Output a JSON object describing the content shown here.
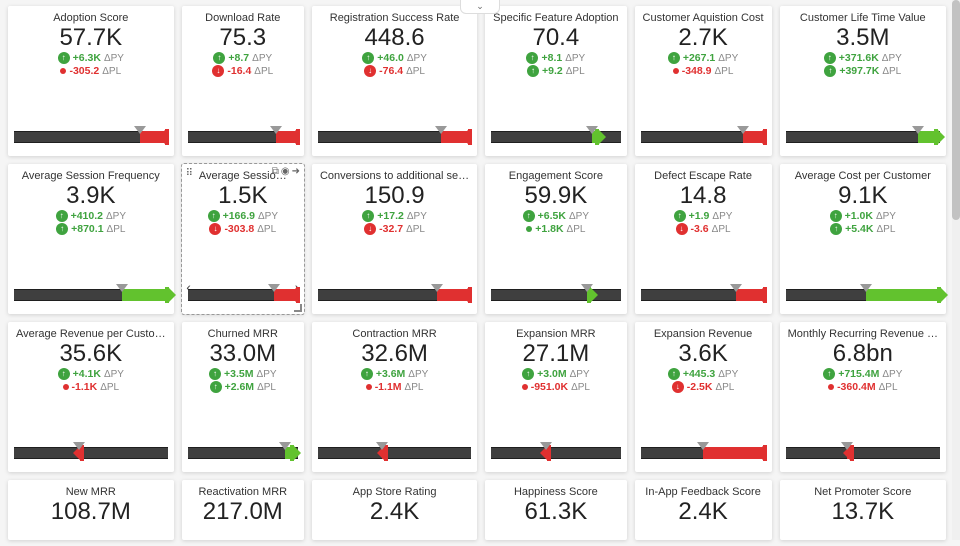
{
  "colors": {
    "green": "#3fa33f",
    "red": "#e03030",
    "bar_green": "#62c22e",
    "bar_red": "#e03030",
    "track": "#3f3f3f",
    "card_bg": "#ffffff",
    "page_bg": "#f5f5f5"
  },
  "cards": [
    {
      "title": "Adoption Score",
      "value": "57.7K",
      "dpy": {
        "kind": "arrow",
        "dir": "up",
        "color": "green",
        "text": "+6.3K"
      },
      "dpl": {
        "kind": "dot",
        "color": "red",
        "text": "-305.2",
        "text_color": "red"
      },
      "bullet": {
        "marker_pct": 82,
        "fill_from": 82,
        "fill_to": 100,
        "fill_color": "red",
        "cap": "red-left"
      }
    },
    {
      "title": "Download Rate",
      "value": "75.3",
      "dpy": {
        "kind": "arrow",
        "dir": "up",
        "color": "green",
        "text": "+8.7"
      },
      "dpl": {
        "kind": "arrow",
        "dir": "down",
        "color": "red",
        "text": "-16.4",
        "text_color": "red"
      },
      "bullet": {
        "marker_pct": 80,
        "fill_from": 80,
        "fill_to": 100,
        "fill_color": "red",
        "cap": "red-left"
      }
    },
    {
      "title": "Registration Success Rate",
      "value": "448.6",
      "dpy": {
        "kind": "arrow",
        "dir": "up",
        "color": "green",
        "text": "+46.0"
      },
      "dpl": {
        "kind": "arrow",
        "dir": "down",
        "color": "red",
        "text": "-76.4",
        "text_color": "red"
      },
      "bullet": {
        "marker_pct": 80,
        "fill_from": 80,
        "fill_to": 100,
        "fill_color": "red",
        "cap": "red-left"
      }
    },
    {
      "title": "Specific Feature Adoption",
      "value": "70.4",
      "dpy": {
        "kind": "arrow",
        "dir": "up",
        "color": "green",
        "text": "+8.1"
      },
      "dpl": {
        "kind": "arrow",
        "dir": "up",
        "color": "green",
        "text": "+9.2"
      },
      "bullet": {
        "marker_pct": 78,
        "fill_from": 78,
        "fill_to": 82,
        "fill_color": "green",
        "cap": "green-right"
      }
    },
    {
      "title": "Customer Aquistion Cost",
      "value": "2.7K",
      "dpy": {
        "kind": "arrow",
        "dir": "up",
        "color": "green",
        "text": "+267.1"
      },
      "dpl": {
        "kind": "dot",
        "color": "red",
        "text": "-348.9",
        "text_color": "red"
      },
      "bullet": {
        "marker_pct": 82,
        "fill_from": 82,
        "fill_to": 100,
        "fill_color": "red",
        "cap": "red-left"
      }
    },
    {
      "title": "Customer Life Time Value",
      "value": "3.5M",
      "dpy": {
        "kind": "arrow",
        "dir": "up",
        "color": "green",
        "text": "+371.6K"
      },
      "dpl": {
        "kind": "arrow",
        "dir": "up",
        "color": "green",
        "text": "+397.7K"
      },
      "bullet": {
        "marker_pct": 86,
        "fill_from": 86,
        "fill_to": 98,
        "fill_color": "green",
        "cap": "green-right"
      }
    },
    {
      "title": "Average Session Frequency",
      "value": "3.9K",
      "dpy": {
        "kind": "arrow",
        "dir": "up",
        "color": "green",
        "text": "+410.2"
      },
      "dpl": {
        "kind": "arrow",
        "dir": "up",
        "color": "green",
        "text": "+870.1"
      },
      "bullet": {
        "marker_pct": 70,
        "fill_from": 70,
        "fill_to": 100,
        "fill_color": "green",
        "cap": "green-right"
      }
    },
    {
      "title": "Average Sessio…",
      "value": "1.5K",
      "focused": true,
      "dpy": {
        "kind": "arrow",
        "dir": "up",
        "color": "green",
        "text": "+166.9"
      },
      "dpl": {
        "kind": "arrow",
        "dir": "down",
        "color": "red",
        "text": "-303.8",
        "text_color": "red"
      },
      "bullet": {
        "marker_pct": 78,
        "fill_from": 78,
        "fill_to": 100,
        "fill_color": "red",
        "cap": "red-left"
      }
    },
    {
      "title": "Conversions to additional se…",
      "value": "150.9",
      "dpy": {
        "kind": "arrow",
        "dir": "up",
        "color": "green",
        "text": "+17.2"
      },
      "dpl": {
        "kind": "arrow",
        "dir": "down",
        "color": "red",
        "text": "-32.7",
        "text_color": "red"
      },
      "bullet": {
        "marker_pct": 78,
        "fill_from": 78,
        "fill_to": 100,
        "fill_color": "red",
        "cap": "red-left"
      }
    },
    {
      "title": "Engagement Score",
      "value": "59.9K",
      "dpy": {
        "kind": "arrow",
        "dir": "up",
        "color": "green",
        "text": "+6.5K"
      },
      "dpl": {
        "kind": "dot",
        "color": "green",
        "text": "+1.8K",
        "text_color": "green"
      },
      "bullet": {
        "marker_pct": 74,
        "fill_from": 74,
        "fill_to": 76,
        "fill_color": "green",
        "cap": "green-right"
      }
    },
    {
      "title": "Defect Escape Rate",
      "value": "14.8",
      "dpy": {
        "kind": "arrow",
        "dir": "up",
        "color": "green",
        "text": "+1.9"
      },
      "dpl": {
        "kind": "arrow",
        "dir": "down",
        "color": "red",
        "text": "-3.6",
        "text_color": "red"
      },
      "bullet": {
        "marker_pct": 76,
        "fill_from": 76,
        "fill_to": 100,
        "fill_color": "red",
        "cap": "red-left"
      }
    },
    {
      "title": "Average Cost per Customer",
      "value": "9.1K",
      "dpy": {
        "kind": "arrow",
        "dir": "up",
        "color": "green",
        "text": "+1.0K"
      },
      "dpl": {
        "kind": "arrow",
        "dir": "up",
        "color": "green",
        "text": "+5.4K"
      },
      "bullet": {
        "marker_pct": 52,
        "fill_from": 52,
        "fill_to": 100,
        "fill_color": "green",
        "cap": "green-right"
      }
    },
    {
      "title": "Average Revenue per Custo…",
      "value": "35.6K",
      "dpy": {
        "kind": "arrow",
        "dir": "up",
        "color": "green",
        "text": "+4.1K"
      },
      "dpl": {
        "kind": "dot",
        "color": "red",
        "text": "-1.1K",
        "text_color": "red"
      },
      "bullet": {
        "marker_pct": 42,
        "fill_from": 42,
        "fill_to": 45,
        "fill_color": "red",
        "cap": "red-left"
      }
    },
    {
      "title": "Churned MRR",
      "value": "33.0M",
      "dpy": {
        "kind": "arrow",
        "dir": "up",
        "color": "green",
        "text": "+3.5M"
      },
      "dpl": {
        "kind": "arrow",
        "dir": "up",
        "color": "green",
        "text": "+2.6M"
      },
      "bullet": {
        "marker_pct": 88,
        "fill_from": 88,
        "fill_to": 95,
        "fill_color": "green",
        "cap": "green-right"
      }
    },
    {
      "title": "Contraction MRR",
      "value": "32.6M",
      "dpy": {
        "kind": "arrow",
        "dir": "up",
        "color": "green",
        "text": "+3.6M"
      },
      "dpl": {
        "kind": "dot",
        "color": "red",
        "text": "-1.1M",
        "text_color": "red"
      },
      "bullet": {
        "marker_pct": 42,
        "fill_from": 42,
        "fill_to": 45,
        "fill_color": "red",
        "cap": "red-left"
      }
    },
    {
      "title": "Expansion MRR",
      "value": "27.1M",
      "dpy": {
        "kind": "arrow",
        "dir": "up",
        "color": "green",
        "text": "+3.0M"
      },
      "dpl": {
        "kind": "dot",
        "color": "red",
        "text": "-951.0K",
        "text_color": "red"
      },
      "bullet": {
        "marker_pct": 42,
        "fill_from": 42,
        "fill_to": 45,
        "fill_color": "red",
        "cap": "red-left"
      }
    },
    {
      "title": "Expansion Revenue",
      "value": "3.6K",
      "dpy": {
        "kind": "arrow",
        "dir": "up",
        "color": "green",
        "text": "+445.3"
      },
      "dpl": {
        "kind": "arrow",
        "dir": "down",
        "color": "red",
        "text": "-2.5K",
        "text_color": "red"
      },
      "bullet": {
        "marker_pct": 50,
        "fill_from": 50,
        "fill_to": 100,
        "fill_color": "red",
        "cap": "red-left"
      }
    },
    {
      "title": "Monthly Recurring Revenue …",
      "value": "6.8bn",
      "dpy": {
        "kind": "arrow",
        "dir": "up",
        "color": "green",
        "text": "+715.4M"
      },
      "dpl": {
        "kind": "dot",
        "color": "red",
        "text": "-360.4M",
        "text_color": "red"
      },
      "bullet": {
        "marker_pct": 40,
        "fill_from": 40,
        "fill_to": 44,
        "fill_color": "red",
        "cap": "red-left"
      }
    },
    {
      "title": "New MRR",
      "value": "108.7M",
      "partial": true
    },
    {
      "title": "Reactivation MRR",
      "value": "217.0M",
      "partial": true
    },
    {
      "title": "App Store Rating",
      "value": "2.4K",
      "partial": true
    },
    {
      "title": "Happiness Score",
      "value": "61.3K",
      "partial": true
    },
    {
      "title": "In-App Feedback Score",
      "value": "2.4K",
      "partial": true
    },
    {
      "title": "Net Promoter Score",
      "value": "13.7K",
      "partial": true
    }
  ],
  "labels": {
    "dpy": "ΔPY",
    "dpl": "ΔPL"
  }
}
